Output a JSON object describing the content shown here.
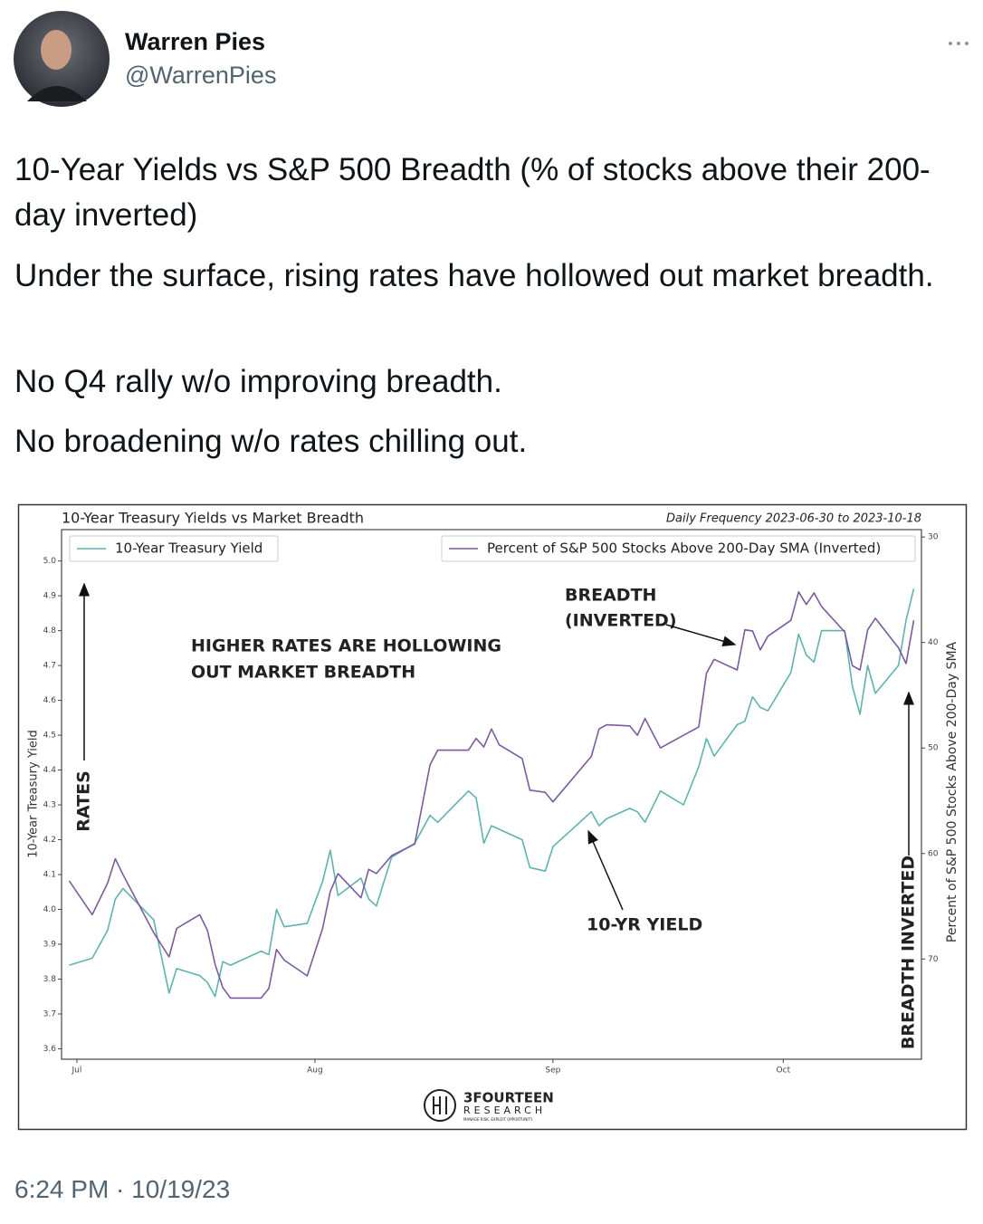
{
  "tweet": {
    "name": "Warren Pies",
    "handle": "@WarrenPies",
    "paragraphs": [
      "10-Year Yields vs S&P 500 Breadth (% of stocks above their 200-day inverted)",
      "Under the surface, rising rates have hollowed out market breadth.",
      "No Q4 rally w/o improving breadth.",
      "No broadening w/o rates chilling out."
    ],
    "timestamp": "6:24 PM · 10/19/23"
  },
  "chart_data": {
    "type": "line",
    "title": "10-Year Treasury Yields vs Market Breadth",
    "subtitle": "Daily Frequency 2023-06-30 to 2023-10-18",
    "ylabel": "10-Year Treasury Yield",
    "y2label": "Percent of S&P 500 Stocks Above 200-Day SMA",
    "x": [
      "2023-06-30",
      "2023-07-03",
      "2023-07-05",
      "2023-07-06",
      "2023-07-07",
      "2023-07-11",
      "2023-07-13",
      "2023-07-14",
      "2023-07-17",
      "2023-07-18",
      "2023-07-19",
      "2023-07-20",
      "2023-07-21",
      "2023-07-25",
      "2023-07-26",
      "2023-07-27",
      "2023-07-28",
      "2023-07-31",
      "2023-08-02",
      "2023-08-03",
      "2023-08-04",
      "2023-08-07",
      "2023-08-08",
      "2023-08-09",
      "2023-08-11",
      "2023-08-14",
      "2023-08-16",
      "2023-08-17",
      "2023-08-21",
      "2023-08-22",
      "2023-08-23",
      "2023-08-24",
      "2023-08-25",
      "2023-08-28",
      "2023-08-29",
      "2023-08-31",
      "2023-09-01",
      "2023-09-06",
      "2023-09-07",
      "2023-09-08",
      "2023-09-11",
      "2023-09-12",
      "2023-09-13",
      "2023-09-15",
      "2023-09-18",
      "2023-09-20",
      "2023-09-21",
      "2023-09-22",
      "2023-09-25",
      "2023-09-26",
      "2023-09-27",
      "2023-09-28",
      "2023-09-29",
      "2023-10-02",
      "2023-10-03",
      "2023-10-04",
      "2023-10-05",
      "2023-10-06",
      "2023-10-09",
      "2023-10-10",
      "2023-10-11",
      "2023-10-12",
      "2023-10-13",
      "2023-10-16",
      "2023-10-17",
      "2023-10-18"
    ],
    "series": [
      {
        "name": "10-Year Treasury Yield",
        "color": "#5fb3ad",
        "values": [
          3.84,
          3.86,
          3.94,
          4.03,
          4.06,
          3.97,
          3.76,
          3.83,
          3.81,
          3.79,
          3.75,
          3.85,
          3.84,
          3.88,
          3.87,
          4.0,
          3.95,
          3.96,
          4.08,
          4.17,
          4.04,
          4.09,
          4.03,
          4.01,
          4.15,
          4.19,
          4.27,
          4.25,
          4.34,
          4.32,
          4.19,
          4.24,
          4.23,
          4.2,
          4.12,
          4.11,
          4.18,
          4.28,
          4.24,
          4.26,
          4.29,
          4.28,
          4.25,
          4.34,
          4.3,
          4.41,
          4.49,
          4.44,
          4.53,
          4.54,
          4.61,
          4.58,
          4.57,
          4.68,
          4.79,
          4.73,
          4.71,
          4.8,
          4.8,
          4.64,
          4.56,
          4.7,
          4.62,
          4.7,
          4.83,
          4.92
        ]
      },
      {
        "name": "Percent of S&P 500 Stocks Above 200-Day SMA (Inverted)",
        "color": "#7b5a9e",
        "axis": "y2",
        "values": [
          62.6,
          65.8,
          62.8,
          60.5,
          62.0,
          67.5,
          69.8,
          67.1,
          65.8,
          67.3,
          70.5,
          72.7,
          73.7,
          73.7,
          72.8,
          69.1,
          70.1,
          71.6,
          67.1,
          63.6,
          61.9,
          64.2,
          61.5,
          61.9,
          60.2,
          59.1,
          51.6,
          50.2,
          50.2,
          49.1,
          49.9,
          48.2,
          49.7,
          51.0,
          54.0,
          54.2,
          55.1,
          50.8,
          48.2,
          47.8,
          47.9,
          48.8,
          47.2,
          50.0,
          48.8,
          48.0,
          42.9,
          41.6,
          42.6,
          38.8,
          38.9,
          40.7,
          39.4,
          37.9,
          35.2,
          36.4,
          35.3,
          36.6,
          39.0,
          42.2,
          42.6,
          38.8,
          37.7,
          40.5,
          42.0,
          37.9
        ]
      }
    ],
    "xlim": [
      "2023-06-29",
      "2023-10-19"
    ],
    "xticks": [
      {
        "value": "2023-07-01",
        "label": "Jul"
      },
      {
        "value": "2023-08-01",
        "label": "Aug"
      },
      {
        "value": "2023-09-01",
        "label": "Sep"
      },
      {
        "value": "2023-10-01",
        "label": "Oct"
      }
    ],
    "ylim": [
      3.57,
      5.09
    ],
    "yticks": [
      3.6,
      3.7,
      3.8,
      3.9,
      {
        "value": 4,
        "label": "4.0"
      },
      4.1,
      4.2,
      4.3,
      4.4,
      4.5,
      4.6,
      4.7,
      4.8,
      4.9,
      {
        "value": 5,
        "label": "5.0"
      }
    ],
    "y2lim": [
      29.3,
      79.5
    ],
    "y2ticks": [
      30,
      40,
      50,
      60,
      70
    ],
    "y2_inverted": true,
    "grid": false,
    "annotations": [
      [
        "HIGHER RATES ARE HOLLOWING",
        "OUT MARKET BREADTH"
      ],
      [
        "BREADTH",
        "(INVERTED)"
      ],
      [
        "10-YR YIELD"
      ],
      [
        "RATES"
      ],
      [
        "BREADTH INVERTED"
      ]
    ],
    "logo": {
      "name": "3FOURTEEN",
      "sub": "RESEARCH",
      "tagline": "MANAGE RISK. EXPLOIT OPPORTUNITY."
    }
  }
}
